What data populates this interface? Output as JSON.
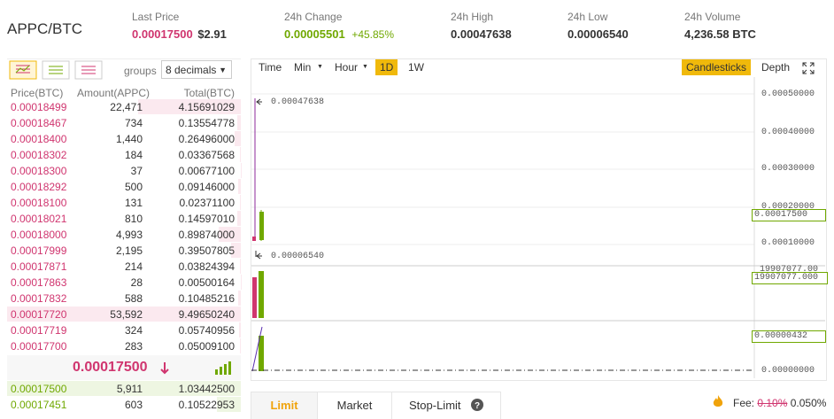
{
  "header": {
    "pair": "APPC/BTC",
    "stats": [
      {
        "label": "Last Price",
        "value": "0.00017500",
        "extra": "$2.91"
      },
      {
        "label": "24h Change",
        "value": "0.00005501",
        "extra": "+45.85%"
      },
      {
        "label": "24h High",
        "value": "0.00047638"
      },
      {
        "label": "24h Low",
        "value": "0.00006540"
      },
      {
        "label": "24h Volume",
        "value": "4,236.58 BTC"
      }
    ]
  },
  "orderbook": {
    "groups_label": "groups",
    "decimals": "8 decimals",
    "columns": [
      "Price(BTC)",
      "Amount(APPC)",
      "Total(BTC)"
    ],
    "asks": [
      {
        "price": "0.00018499",
        "amount": "22,471",
        "total": "4.15691029"
      },
      {
        "price": "0.00018467",
        "amount": "734",
        "total": "0.13554778"
      },
      {
        "price": "0.00018400",
        "amount": "1,440",
        "total": "0.26496000"
      },
      {
        "price": "0.00018302",
        "amount": "184",
        "total": "0.03367568"
      },
      {
        "price": "0.00018300",
        "amount": "37",
        "total": "0.00677100"
      },
      {
        "price": "0.00018292",
        "amount": "500",
        "total": "0.09146000"
      },
      {
        "price": "0.00018100",
        "amount": "131",
        "total": "0.02371100"
      },
      {
        "price": "0.00018021",
        "amount": "810",
        "total": "0.14597010"
      },
      {
        "price": "0.00018000",
        "amount": "4,993",
        "total": "0.89874000"
      },
      {
        "price": "0.00017999",
        "amount": "2,195",
        "total": "0.39507805"
      },
      {
        "price": "0.00017871",
        "amount": "214",
        "total": "0.03824394"
      },
      {
        "price": "0.00017863",
        "amount": "28",
        "total": "0.00500164"
      },
      {
        "price": "0.00017832",
        "amount": "588",
        "total": "0.10485216"
      },
      {
        "price": "0.00017720",
        "amount": "53,592",
        "total": "9.49650240"
      },
      {
        "price": "0.00017719",
        "amount": "324",
        "total": "0.05740956"
      },
      {
        "price": "0.00017700",
        "amount": "283",
        "total": "0.05009100"
      }
    ],
    "last_price": "0.00017500",
    "bids": [
      {
        "price": "0.00017500",
        "amount": "5,911",
        "total": "1.03442500"
      },
      {
        "price": "0.00017451",
        "amount": "603",
        "total": "0.10522953"
      }
    ]
  },
  "chart": {
    "toolbar": [
      "Time",
      "Min",
      "Hour",
      "1D",
      "1W"
    ],
    "modes": [
      "Candlesticks",
      "Depth"
    ],
    "axis_labels": [
      "0.00050000",
      "0.00040000",
      "0.00030000",
      "0.00020000",
      "0.00010000"
    ],
    "high_note": "0.00047638",
    "low_note": "0.00006540",
    "price_tag": "0.00017500",
    "volume_label": "19907077.00",
    "volume_tag": "19907077.000",
    "indicator_tag": "0.00000432",
    "indicator_zero": "0.00000000"
  },
  "order_form": {
    "tabs": [
      "Limit",
      "Market",
      "Stop-Limit"
    ],
    "fee_label": "Fee:",
    "fee_old": "0.10%",
    "fee_new": "0.050%"
  }
}
